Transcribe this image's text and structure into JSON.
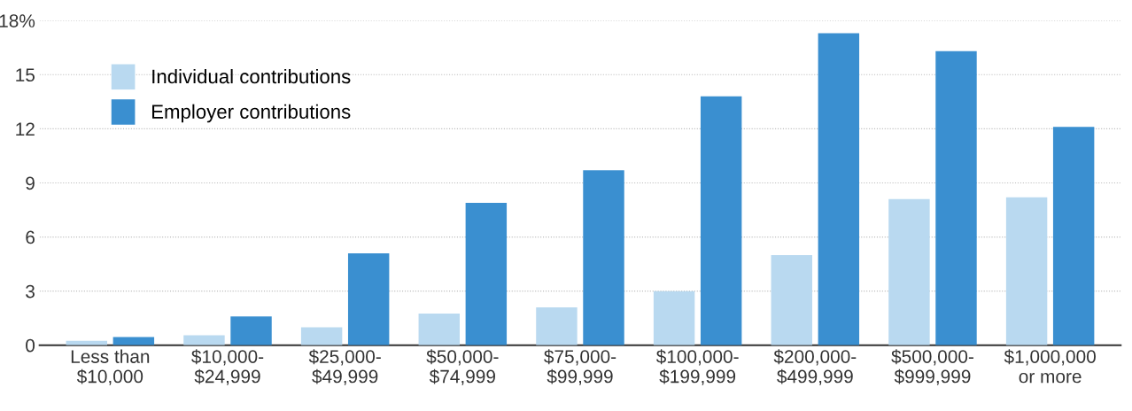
{
  "chart_data": {
    "type": "bar",
    "categories": [
      "Less than\n$10,000",
      "$10,000-\n$24,999",
      "$25,000-\n$49,999",
      "$50,000-\n$74,999",
      "$75,000-\n$99,999",
      "$100,000-\n$199,999",
      "$200,000-\n$499,999",
      "$500,000-\n$999,999",
      "$1,000,000\nor more"
    ],
    "series": [
      {
        "name": "Individual contributions",
        "color": "#b9d9f0",
        "values": [
          0.25,
          0.55,
          1.0,
          1.75,
          2.1,
          3.0,
          5.0,
          8.1,
          8.2
        ]
      },
      {
        "name": "Employer contributions",
        "color": "#3a8fd0",
        "values": [
          0.45,
          1.6,
          5.1,
          7.9,
          9.7,
          13.8,
          17.3,
          16.3,
          12.1
        ]
      }
    ],
    "ylim": [
      0,
      18
    ],
    "yticks": [
      0,
      3,
      6,
      9,
      12,
      15,
      {
        "value": 18,
        "label": "18%"
      }
    ],
    "grid": "y",
    "legend": "upper left"
  }
}
